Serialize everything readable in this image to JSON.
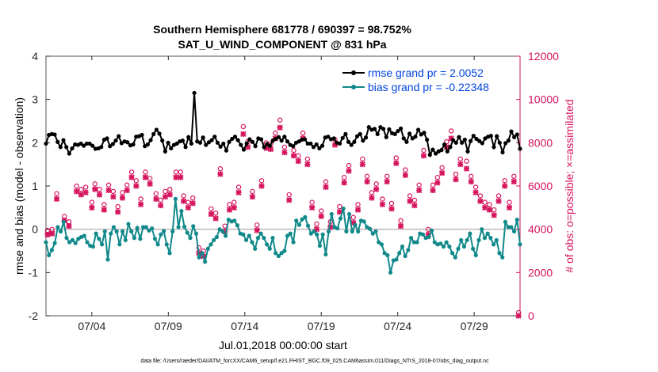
{
  "chart_data": {
    "type": "line",
    "title_line1": "Southern Hemisphere 681778 / 690397 = 98.752%",
    "title_line2": "SAT_U_WIND_COMPONENT @ 831 hPa",
    "xlabel": "Jul.01,2018 00:00:00 start",
    "ylabel_left": "rmse and bias (model - observation)",
    "ylabel_right": "# of obs: o=possible; ×=assimilated",
    "footer": "data file: /Users/raeder/DAI/ATM_forcXX/CAM6_setup/f.e21.FHIST_BGC.f09_025.CAM6assim.011/Diags_NTrS_2018-07/obs_diag_output.nc",
    "xlim": [
      1,
      32
    ],
    "ylim_left": [
      -2,
      4
    ],
    "ylim_right": [
      0,
      12000
    ],
    "x_ticks": [
      4,
      9,
      14,
      19,
      24,
      29
    ],
    "x_tick_labels": [
      "07/04",
      "07/09",
      "07/14",
      "07/19",
      "07/24",
      "07/29"
    ],
    "y_left_ticks": [
      "-2",
      "-1",
      "0",
      "1",
      "2",
      "3",
      "4"
    ],
    "y_right_ticks": [
      "0",
      "2000",
      "4000",
      "6000",
      "8000",
      "10000",
      "12000"
    ],
    "series": [
      {
        "name": "rmse grand pr = 2.0052",
        "axis": "left",
        "color": "#000000",
        "values": [
          1.98,
          2.18,
          2.2,
          2.19,
          2.02,
          1.9,
          2.06,
          1.9,
          1.75,
          1.87,
          1.96,
          1.95,
          1.98,
          1.93,
          1.98,
          1.98,
          1.93,
          1.86,
          1.87,
          1.9,
          2.07,
          2.1,
          1.92,
          1.97,
          2.05,
          2.15,
          1.99,
          2.03,
          2.01,
          1.94,
          1.96,
          2.14,
          2.15,
          2.18,
          1.92,
          1.96,
          2.06,
          2.2,
          2.3,
          2.21,
          2.05,
          1.8,
          2.0,
          1.87,
          1.95,
          1.98,
          2.03,
          2.05,
          1.9,
          2.13,
          1.98,
          3.15,
          2.03,
          2.0,
          2.12,
          1.95,
          2.01,
          2.06,
          2.14,
          2.0,
          1.91,
          1.98,
          1.82,
          2.02,
          2.09,
          2.14,
          2.06,
          1.95,
          1.84,
          1.98,
          2.08,
          2.02,
          1.92,
          2.1,
          2.08,
          1.9,
          1.97,
          1.93,
          2.05,
          2.09,
          2.13,
          2.05,
          2.14,
          2.03,
          1.95,
          1.92,
          2.0,
          2.03,
          2.07,
          2.08,
          1.98,
          1.98,
          1.9,
          1.96,
          1.87,
          1.93,
          2.12,
          2.14,
          2.08,
          2.1,
          2.0,
          1.98,
          2.11,
          2.2,
          2.02,
          1.95,
          2.02,
          2.15,
          2.2,
          2.05,
          2.12,
          2.36,
          2.3,
          2.32,
          2.2,
          2.36,
          2.32,
          2.13,
          2.31,
          2.22,
          2.2,
          2.27,
          2.33,
          2.1,
          2.02,
          2.21,
          2.1,
          2.14,
          2.3,
          2.19,
          2.23,
          2.07,
          1.72,
          1.84,
          1.75,
          1.8,
          1.83,
          1.96,
          1.8,
          1.9,
          2.06,
          2.0,
          2.13,
          2.0,
          2.07,
          1.8,
          2.04,
          2.16,
          2.09,
          2.04,
          1.99,
          2.1,
          2.14,
          2.16,
          1.9,
          2.15,
          2.0,
          1.78,
          1.99,
          2.05,
          2.26,
          2.13,
          2.19,
          1.86
        ]
      },
      {
        "name": "bias grand pr = -0.22348",
        "axis": "left",
        "color": "#11898a",
        "values": [
          -0.3,
          -0.6,
          -0.48,
          -0.32,
          0.05,
          -0.05,
          0.17,
          -0.2,
          -0.3,
          -0.25,
          -0.32,
          -0.22,
          -0.18,
          -0.15,
          -0.3,
          -0.38,
          -0.4,
          -0.1,
          -0.22,
          -0.35,
          -0.05,
          -0.7,
          -0.1,
          0.05,
          -0.05,
          -0.35,
          -0.05,
          -0.25,
          0.12,
          -0.05,
          -0.2,
          0.03,
          -0.22,
          0.05,
          0.05,
          -0.03,
          0.02,
          -0.22,
          -0.35,
          -0.12,
          -0.04,
          -0.35,
          -0.55,
          -0.05,
          0.7,
          0.05,
          0.42,
          0.06,
          -0.08,
          -0.2,
          0.07,
          -0.1,
          -0.65,
          -0.55,
          -0.75,
          -0.45,
          -0.35,
          -0.25,
          -0.18,
          0.0,
          -0.05,
          -0.15,
          0.22,
          0.18,
          0.2,
          0.09,
          -0.1,
          -0.12,
          -0.25,
          -0.15,
          -0.3,
          -0.45,
          -0.2,
          -0.1,
          -0.2,
          -0.35,
          -0.45,
          -0.2,
          -0.55,
          -0.62,
          -0.55,
          -0.5,
          -0.15,
          -0.1,
          -0.3,
          0.2,
          0.1,
          0.23,
          0.28,
          0.08,
          -0.1,
          -0.05,
          -0.12,
          -0.38,
          -0.12,
          -0.58,
          -0.05,
          0.35,
          0.05,
          0.02,
          0.25,
          0.48,
          -0.05,
          0.35,
          -0.05,
          0.1,
          -0.05,
          0.2,
          0.18,
          0.05,
          0.01,
          -0.1,
          -0.05,
          -0.3,
          -0.35,
          -0.55,
          -0.6,
          -1.0,
          -0.72,
          -0.7,
          -0.55,
          -0.4,
          -0.62,
          -0.48,
          -0.2,
          -0.3,
          -0.3,
          -0.1,
          -0.12,
          -0.2,
          -0.18,
          -0.03,
          -0.3,
          -0.35,
          -0.33,
          -0.4,
          -0.3,
          -0.4,
          -0.55,
          -0.65,
          -0.45,
          -0.25,
          -0.4,
          -0.25,
          -0.1,
          -0.45,
          -0.6,
          -0.25,
          0.0,
          -0.2,
          -0.1,
          -0.2,
          -0.35,
          -0.25,
          -0.55,
          -0.65,
          0.17,
          0.05,
          0.05,
          -0.05,
          0.22,
          -0.35
        ]
      },
      {
        "name": "possible",
        "axis": "right",
        "color": "#d6145e",
        "marker": "o",
        "points": [
          [
            1.1,
            3800
          ],
          [
            1.4,
            3850
          ],
          [
            1.7,
            5500
          ],
          [
            2.2,
            4450
          ],
          [
            2.5,
            4200
          ],
          [
            3.0,
            5850
          ],
          [
            3.3,
            5700
          ],
          [
            3.6,
            5800
          ],
          [
            4.0,
            5100
          ],
          [
            4.2,
            5950
          ],
          [
            4.5,
            5700
          ],
          [
            4.8,
            5000
          ],
          [
            5.1,
            5900
          ],
          [
            5.4,
            5600
          ],
          [
            5.7,
            4900
          ],
          [
            6.0,
            5550
          ],
          [
            6.3,
            5900
          ],
          [
            6.6,
            6500
          ],
          [
            6.9,
            6100
          ],
          [
            7.2,
            5250
          ],
          [
            7.5,
            6500
          ],
          [
            7.8,
            6200
          ],
          [
            8.2,
            5500
          ],
          [
            8.5,
            5200
          ],
          [
            8.8,
            5600
          ],
          [
            9.1,
            5700
          ],
          [
            9.5,
            6500
          ],
          [
            9.8,
            6500
          ],
          [
            10.0,
            5400
          ],
          [
            10.3,
            5100
          ],
          [
            10.6,
            5300
          ],
          [
            11.0,
            3000
          ],
          [
            11.3,
            2850
          ],
          [
            11.8,
            4800
          ],
          [
            12.1,
            4600
          ],
          [
            12.4,
            6650
          ],
          [
            12.7,
            4000
          ],
          [
            13.0,
            5000
          ],
          [
            13.3,
            5100
          ],
          [
            13.6,
            5800
          ],
          [
            13.9,
            8600
          ],
          [
            14.2,
            7900
          ],
          [
            14.5,
            5600
          ],
          [
            14.8,
            4050
          ],
          [
            15.1,
            6100
          ],
          [
            15.4,
            7850
          ],
          [
            15.7,
            7800
          ],
          [
            16.0,
            8300
          ],
          [
            16.3,
            8900
          ],
          [
            16.6,
            7650
          ],
          [
            16.9,
            5450
          ],
          [
            17.2,
            7500
          ],
          [
            17.5,
            7250
          ],
          [
            17.8,
            8300
          ],
          [
            18.1,
            7100
          ],
          [
            18.4,
            5100
          ],
          [
            18.7,
            4100
          ],
          [
            19.0,
            4700
          ],
          [
            19.3,
            6050
          ],
          [
            19.6,
            4200
          ],
          [
            19.9,
            8000
          ],
          [
            20.2,
            4900
          ],
          [
            20.5,
            6250
          ],
          [
            20.8,
            6800
          ],
          [
            21.1,
            4400
          ],
          [
            21.4,
            5000
          ],
          [
            21.7,
            7100
          ],
          [
            22.0,
            6300
          ],
          [
            22.3,
            5550
          ],
          [
            22.6,
            5950
          ],
          [
            23.0,
            5250
          ],
          [
            23.3,
            6300
          ],
          [
            23.6,
            5050
          ],
          [
            23.9,
            7150
          ],
          [
            24.2,
            4250
          ],
          [
            24.5,
            6600
          ],
          [
            24.8,
            5400
          ],
          [
            25.1,
            5200
          ],
          [
            25.4,
            5900
          ],
          [
            25.7,
            7500
          ],
          [
            26.0,
            3850
          ],
          [
            26.3,
            5900
          ],
          [
            26.6,
            6250
          ],
          [
            26.9,
            6700
          ],
          [
            27.2,
            7900
          ],
          [
            27.5,
            8400
          ],
          [
            27.8,
            6400
          ],
          [
            28.1,
            7100
          ],
          [
            28.5,
            7000
          ],
          [
            28.8,
            6300
          ],
          [
            29.1,
            5800
          ],
          [
            29.4,
            5400
          ],
          [
            29.7,
            5100
          ],
          [
            30.0,
            5000
          ],
          [
            30.3,
            4750
          ],
          [
            30.6,
            5400
          ],
          [
            31.0,
            6100
          ],
          [
            31.3,
            5100
          ],
          [
            31.6,
            6300
          ],
          [
            31.9,
            0
          ]
        ]
      },
      {
        "name": "assimilated",
        "axis": "right",
        "color": "#d6145e",
        "marker": "x",
        "points": [
          [
            1.1,
            3750
          ],
          [
            1.4,
            3800
          ],
          [
            1.7,
            5400
          ],
          [
            2.2,
            4400
          ],
          [
            2.5,
            4150
          ],
          [
            3.0,
            5750
          ],
          [
            3.3,
            5600
          ],
          [
            3.6,
            5700
          ],
          [
            4.0,
            5000
          ],
          [
            4.2,
            5850
          ],
          [
            4.5,
            5600
          ],
          [
            4.8,
            4900
          ],
          [
            5.1,
            5800
          ],
          [
            5.4,
            5500
          ],
          [
            5.7,
            4800
          ],
          [
            6.0,
            5450
          ],
          [
            6.3,
            5800
          ],
          [
            6.6,
            6400
          ],
          [
            6.9,
            6000
          ],
          [
            7.2,
            5150
          ],
          [
            7.5,
            6400
          ],
          [
            7.8,
            6100
          ],
          [
            8.2,
            5400
          ],
          [
            8.5,
            5100
          ],
          [
            8.8,
            5500
          ],
          [
            9.1,
            5600
          ],
          [
            9.5,
            6400
          ],
          [
            9.8,
            6400
          ],
          [
            10.0,
            5300
          ],
          [
            10.3,
            5000
          ],
          [
            10.6,
            5200
          ],
          [
            11.0,
            2900
          ],
          [
            11.3,
            2750
          ],
          [
            11.8,
            4700
          ],
          [
            12.1,
            4500
          ],
          [
            12.4,
            6550
          ],
          [
            12.7,
            3900
          ],
          [
            13.0,
            4900
          ],
          [
            13.3,
            5000
          ],
          [
            13.6,
            5700
          ],
          [
            13.9,
            8400
          ],
          [
            14.2,
            7800
          ],
          [
            14.5,
            5500
          ],
          [
            14.8,
            3950
          ],
          [
            15.1,
            6000
          ],
          [
            15.4,
            7750
          ],
          [
            15.7,
            7700
          ],
          [
            16.0,
            8200
          ],
          [
            16.3,
            8700
          ],
          [
            16.6,
            7550
          ],
          [
            16.9,
            5350
          ],
          [
            17.2,
            7400
          ],
          [
            17.5,
            7150
          ],
          [
            17.8,
            8200
          ],
          [
            18.1,
            7000
          ],
          [
            18.4,
            5000
          ],
          [
            18.7,
            4000
          ],
          [
            19.0,
            4600
          ],
          [
            19.3,
            5950
          ],
          [
            19.6,
            4100
          ],
          [
            19.9,
            7900
          ],
          [
            20.2,
            4800
          ],
          [
            20.5,
            6150
          ],
          [
            20.8,
            6700
          ],
          [
            21.1,
            4300
          ],
          [
            21.4,
            4900
          ],
          [
            21.7,
            7000
          ],
          [
            22.0,
            6200
          ],
          [
            22.3,
            5450
          ],
          [
            22.6,
            5850
          ],
          [
            23.0,
            5150
          ],
          [
            23.3,
            6200
          ],
          [
            23.6,
            4950
          ],
          [
            23.9,
            7050
          ],
          [
            24.2,
            4150
          ],
          [
            24.5,
            6500
          ],
          [
            24.8,
            5300
          ],
          [
            25.1,
            5100
          ],
          [
            25.4,
            5800
          ],
          [
            25.7,
            7400
          ],
          [
            26.0,
            3750
          ],
          [
            26.3,
            5800
          ],
          [
            26.6,
            6150
          ],
          [
            26.9,
            6600
          ],
          [
            27.2,
            7800
          ],
          [
            27.5,
            8200
          ],
          [
            27.8,
            6300
          ],
          [
            28.1,
            7000
          ],
          [
            28.5,
            6800
          ],
          [
            28.8,
            6200
          ],
          [
            29.1,
            5700
          ],
          [
            29.4,
            5300
          ],
          [
            29.7,
            5000
          ],
          [
            30.0,
            4900
          ],
          [
            30.3,
            4650
          ],
          [
            30.6,
            5300
          ],
          [
            31.0,
            6000
          ],
          [
            31.3,
            5000
          ],
          [
            31.6,
            6200
          ],
          [
            31.9,
            0
          ]
        ]
      }
    ]
  }
}
